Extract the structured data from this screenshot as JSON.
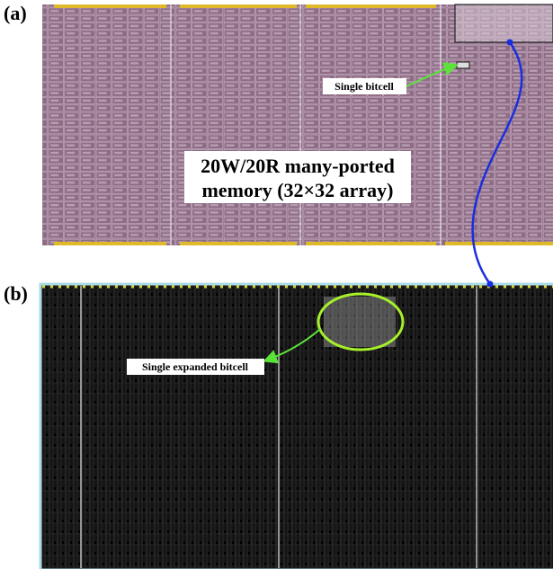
{
  "panel_a": {
    "label": "(a)",
    "annotation": "Single bitcell",
    "title_lines": [
      "20W/20R many-ported",
      "memory (32×32 array)"
    ]
  },
  "panel_b": {
    "label": "(b)",
    "annotation": "Single expanded bitcell"
  }
}
